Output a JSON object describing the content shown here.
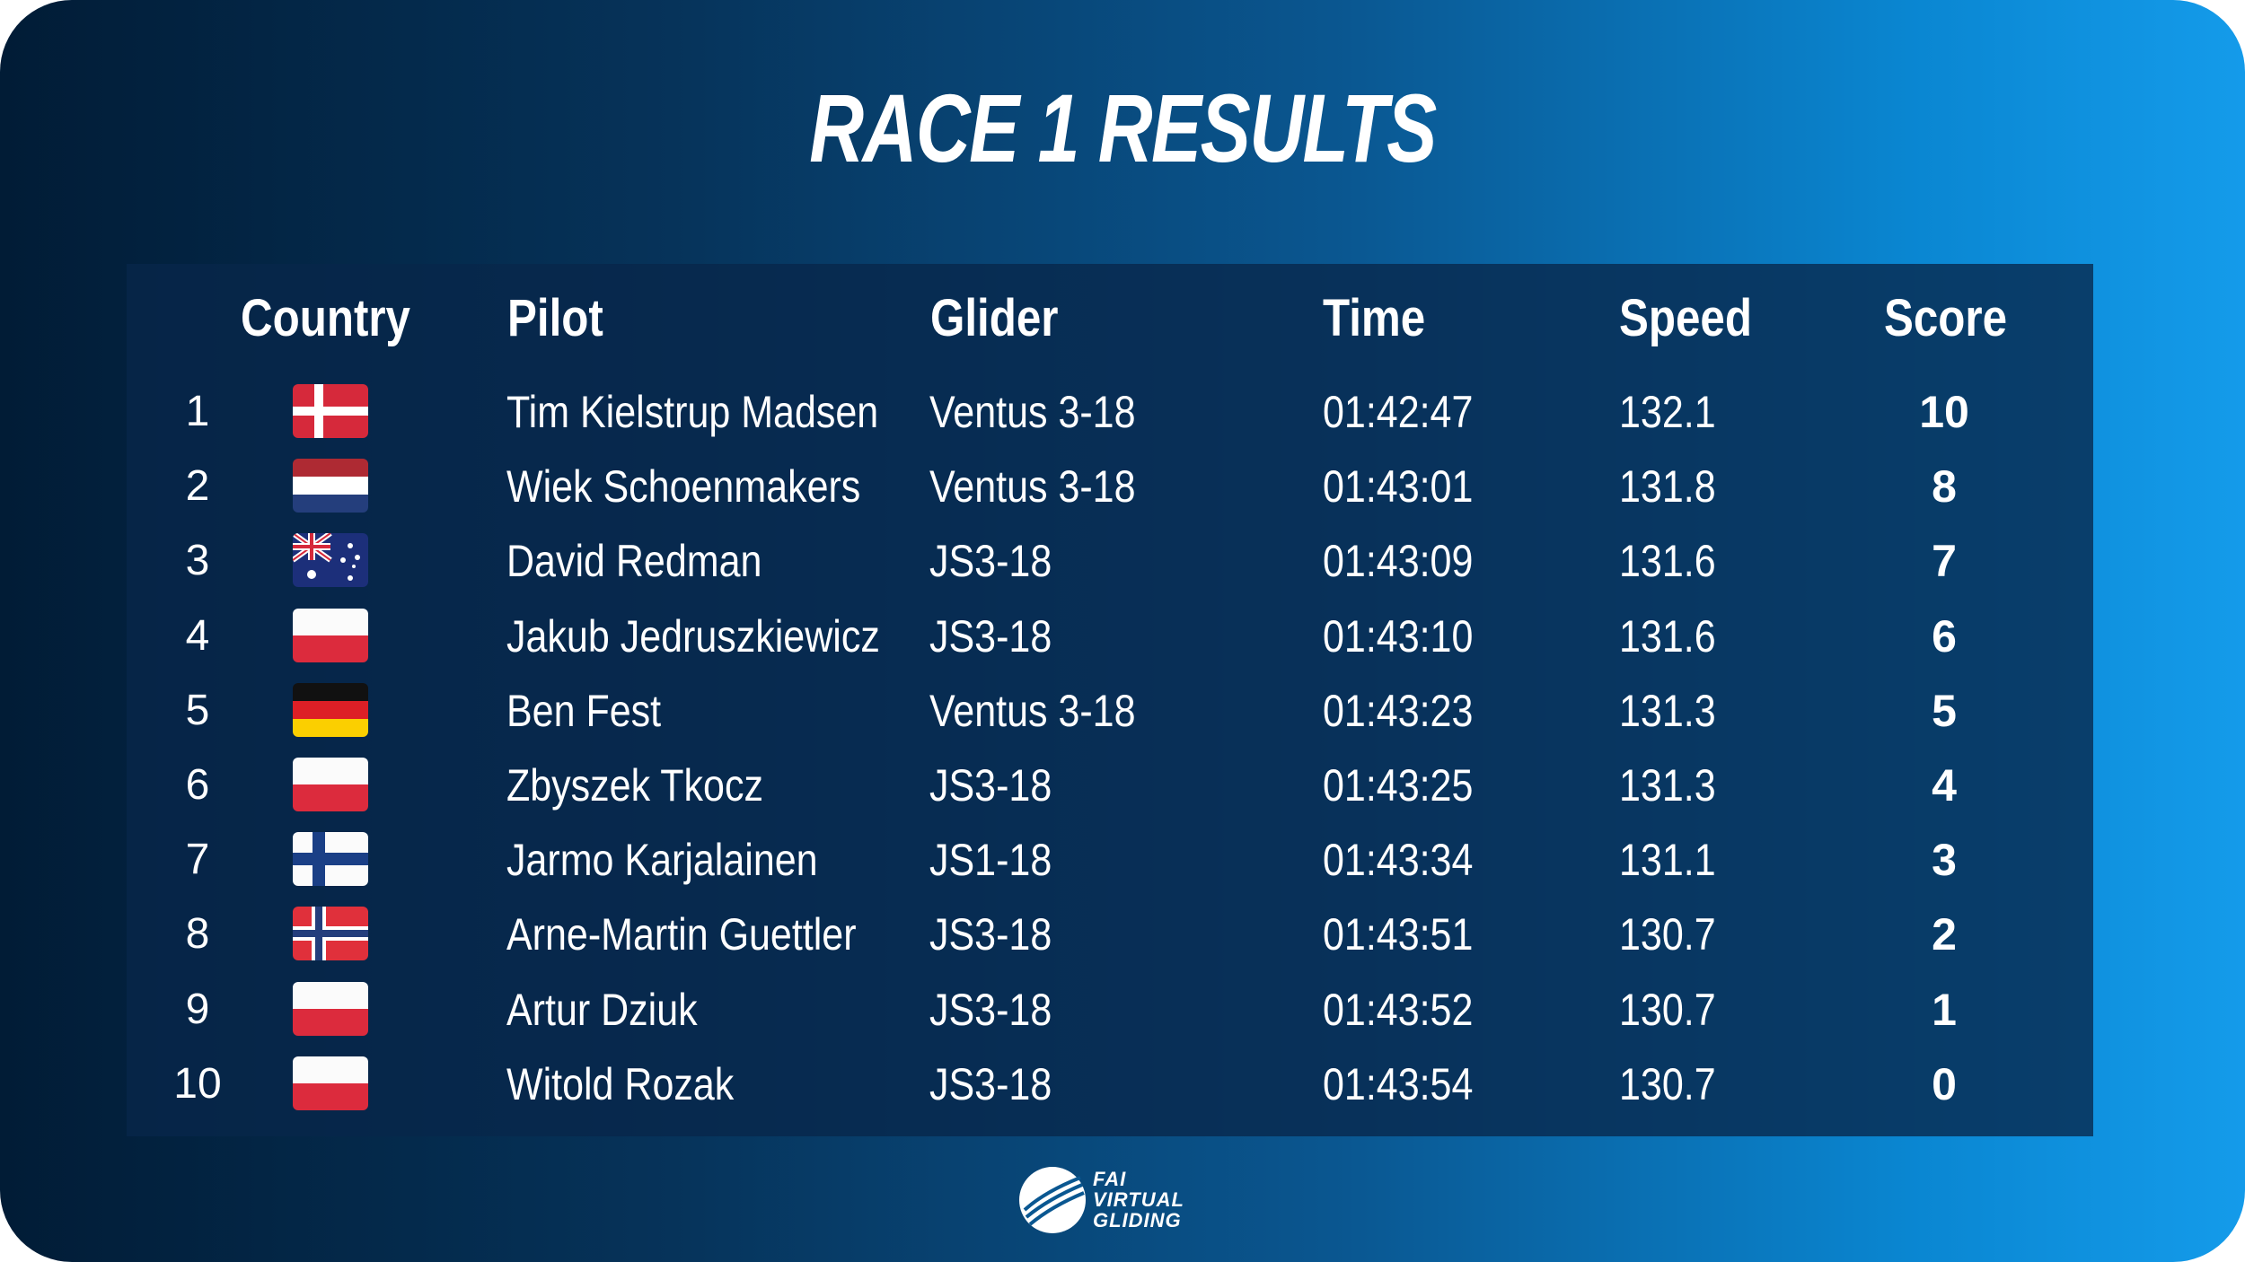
{
  "title": "RACE 1 RESULTS",
  "headers": {
    "country": "Country",
    "pilot": "Pilot",
    "glider": "Glider",
    "time": "Time",
    "speed": "Speed",
    "score": "Score"
  },
  "rows": [
    {
      "rank": "1",
      "flag": "denmark-flag",
      "pilot": "Tim Kielstrup Madsen",
      "glider": "Ventus 3-18",
      "time": "01:42:47",
      "speed": "132.1",
      "score": "10"
    },
    {
      "rank": "2",
      "flag": "netherlands-flag",
      "pilot": "Wiek Schoenmakers",
      "glider": "Ventus 3-18",
      "time": "01:43:01",
      "speed": "131.8",
      "score": "8"
    },
    {
      "rank": "3",
      "flag": "australia-flag",
      "pilot": "David Redman",
      "glider": "JS3-18",
      "time": "01:43:09",
      "speed": "131.6",
      "score": "7"
    },
    {
      "rank": "4",
      "flag": "poland-flag",
      "pilot": "Jakub Jedruszkiewicz",
      "glider": "JS3-18",
      "time": "01:43:10",
      "speed": "131.6",
      "score": "6"
    },
    {
      "rank": "5",
      "flag": "germany-flag",
      "pilot": "Ben Fest",
      "glider": "Ventus 3-18",
      "time": "01:43:23",
      "speed": "131.3",
      "score": "5"
    },
    {
      "rank": "6",
      "flag": "poland-flag",
      "pilot": "Zbyszek Tkocz",
      "glider": "JS3-18",
      "time": "01:43:25",
      "speed": "131.3",
      "score": "4"
    },
    {
      "rank": "7",
      "flag": "finland-flag",
      "pilot": "Jarmo Karjalainen",
      "glider": "JS1-18",
      "time": "01:43:34",
      "speed": "131.1",
      "score": "3"
    },
    {
      "rank": "8",
      "flag": "norway-flag",
      "pilot": "Arne-Martin Guettler",
      "glider": "JS3-18",
      "time": "01:43:51",
      "speed": "130.7",
      "score": "2"
    },
    {
      "rank": "9",
      "flag": "poland-flag",
      "pilot": "Artur Dziuk",
      "glider": "JS3-18",
      "time": "01:43:52",
      "speed": "130.7",
      "score": "1"
    },
    {
      "rank": "10",
      "flag": "poland-flag",
      "pilot": "Witold Rozak",
      "glider": "JS3-18",
      "time": "01:43:54",
      "speed": "130.7",
      "score": "0"
    }
  ],
  "logo": {
    "line1": "FAI",
    "line2": "VIRTUAL",
    "line3": "GLIDING",
    "icon": "glider-wing-logo-icon"
  },
  "colors": {
    "gradient_start": "#011c36",
    "gradient_end": "#149bea",
    "panel": "#08264a",
    "text": "#ffffff"
  }
}
